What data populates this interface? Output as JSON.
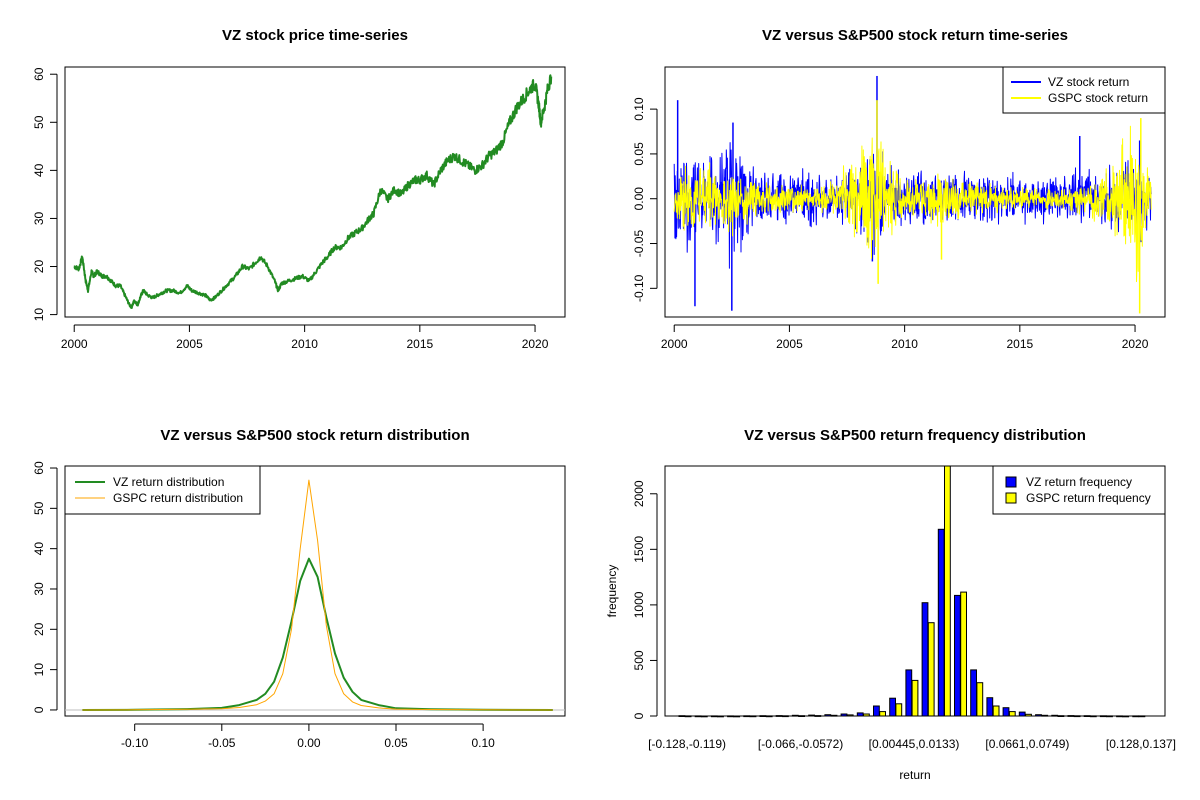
{
  "colors": {
    "vz_price": "#228B22",
    "vz_return": "#0000FF",
    "gspc_return": "#FFFF00",
    "vz_density": "#228B22",
    "gspc_density": "#FFA500",
    "baseline": "#BEBEBE"
  },
  "chart_data": [
    {
      "type": "line",
      "title": "VZ stock price time-series",
      "xlabel": "",
      "ylabel": "",
      "xlim": [
        1999.6,
        2021.3
      ],
      "ylim": [
        9.5,
        61.5
      ],
      "x_ticks": [
        2000,
        2005,
        2010,
        2015,
        2020
      ],
      "x_tick_labels": [
        "2000",
        "2005",
        "2010",
        "2015",
        "2020"
      ],
      "y_ticks": [
        10,
        20,
        30,
        40,
        50,
        60
      ],
      "y_tick_labels": [
        "10",
        "20",
        "30",
        "40",
        "50",
        "60"
      ],
      "series": [
        {
          "x": [
            2000.0,
            2000.2,
            2000.35,
            2000.5,
            2000.6,
            2000.75,
            2000.85,
            2001.0,
            2001.2,
            2001.4,
            2001.6,
            2001.8,
            2002.0,
            2002.2,
            2002.4,
            2002.5,
            2002.6,
            2002.75,
            2002.9,
            2003.0,
            2003.2,
            2003.4,
            2003.6,
            2003.8,
            2004.0,
            2004.3,
            2004.6,
            2004.9,
            2005.1,
            2005.4,
            2005.7,
            2005.9,
            2006.1,
            2006.4,
            2006.7,
            2007.0,
            2007.3,
            2007.6,
            2007.9,
            2008.1,
            2008.4,
            2008.7,
            2008.85,
            2009.0,
            2009.3,
            2009.6,
            2009.9,
            2010.2,
            2010.5,
            2010.8,
            2011.0,
            2011.3,
            2011.6,
            2011.9,
            2012.2,
            2012.5,
            2012.8,
            2013.0,
            2013.3,
            2013.6,
            2013.9,
            2014.2,
            2014.5,
            2014.8,
            2015.0,
            2015.3,
            2015.6,
            2015.9,
            2016.2,
            2016.5,
            2016.8,
            2017.1,
            2017.4,
            2017.7,
            2018.0,
            2018.3,
            2018.6,
            2018.9,
            2019.2,
            2019.5,
            2019.8,
            2020.0,
            2020.15,
            2020.25,
            2020.4,
            2020.55,
            2020.7
          ],
          "values": [
            20,
            19.5,
            22,
            17,
            15,
            19,
            18,
            19,
            18,
            18,
            17,
            16,
            16,
            14,
            12,
            11.5,
            13,
            12,
            14,
            15,
            14,
            13.5,
            14,
            14.5,
            15,
            15,
            14.5,
            16,
            15,
            14.5,
            14,
            13,
            13.5,
            15,
            16.5,
            18,
            20,
            19.5,
            21,
            22,
            20,
            17,
            15,
            16.5,
            17,
            17.5,
            18,
            17,
            19,
            21,
            22,
            24,
            24,
            26,
            27,
            28,
            30,
            31,
            36,
            34,
            36,
            35,
            37,
            38,
            38,
            39,
            37,
            40,
            42,
            43,
            42,
            41,
            40,
            41,
            43,
            44,
            46,
            50,
            53,
            55,
            57,
            58,
            54,
            50,
            53,
            57,
            59.5
          ],
          "color_key": "vz_price",
          "line_width": 2
        }
      ]
    },
    {
      "type": "line",
      "title": "VZ versus S&P500 stock return time-series",
      "xlabel": "",
      "ylabel": "",
      "xlim": [
        1999.6,
        2021.3
      ],
      "ylim": [
        -0.132,
        0.147
      ],
      "x_ticks": [
        2000,
        2005,
        2010,
        2015,
        2020
      ],
      "x_tick_labels": [
        "2000",
        "2005",
        "2010",
        "2015",
        "2020"
      ],
      "y_ticks": [
        -0.1,
        -0.05,
        0.0,
        0.05,
        0.1
      ],
      "y_tick_labels": [
        "-0.10",
        "-0.05",
        "0.00",
        "0.05",
        "0.10"
      ],
      "legend": {
        "position": "top-right",
        "entries": [
          "VZ stock return",
          "GSPC stock return"
        ]
      },
      "series": [
        {
          "name": "VZ stock return",
          "color_key": "vz_return",
          "x_range": [
            2000.0,
            2020.7
          ],
          "volatility_profile": [
            [
              2000.0,
              0.035
            ],
            [
              2001.5,
              0.025
            ],
            [
              2002.5,
              0.04
            ],
            [
              2003.5,
              0.022
            ],
            [
              2005.0,
              0.015
            ],
            [
              2007.0,
              0.015
            ],
            [
              2008.7,
              0.03
            ],
            [
              2009.5,
              0.02
            ],
            [
              2011.0,
              0.018
            ],
            [
              2013.0,
              0.015
            ],
            [
              2016.0,
              0.015
            ],
            [
              2018.0,
              0.018
            ],
            [
              2020.2,
              0.025
            ],
            [
              2020.7,
              0.016
            ]
          ],
          "spikes": [
            [
              2000.15,
              0.11
            ],
            [
              2000.9,
              -0.12
            ],
            [
              2002.5,
              -0.125
            ],
            [
              2002.55,
              0.085
            ],
            [
              2008.8,
              0.137
            ],
            [
              2008.6,
              -0.07
            ],
            [
              2020.2,
              0.065
            ],
            [
              2017.6,
              0.07
            ]
          ]
        },
        {
          "name": "GSPC stock return",
          "color_key": "gspc_return",
          "x_range": [
            2000.0,
            2020.7
          ],
          "volatility_profile": [
            [
              2000.0,
              0.018
            ],
            [
              2002.5,
              0.022
            ],
            [
              2003.5,
              0.012
            ],
            [
              2005.0,
              0.008
            ],
            [
              2007.0,
              0.01
            ],
            [
              2008.8,
              0.045
            ],
            [
              2009.5,
              0.02
            ],
            [
              2010.5,
              0.012
            ],
            [
              2011.6,
              0.02
            ],
            [
              2013.0,
              0.009
            ],
            [
              2017.0,
              0.006
            ],
            [
              2018.2,
              0.012
            ],
            [
              2020.2,
              0.05
            ],
            [
              2020.6,
              0.018
            ]
          ],
          "spikes": [
            [
              2008.8,
              0.11
            ],
            [
              2008.85,
              -0.095
            ],
            [
              2020.2,
              -0.128
            ],
            [
              2020.25,
              0.09
            ],
            [
              2011.6,
              -0.068
            ]
          ]
        }
      ]
    },
    {
      "type": "line",
      "title": "VZ versus S&P500 stock return distribution",
      "xlabel": "",
      "ylabel": "",
      "xlim": [
        -0.14,
        0.147
      ],
      "ylim": [
        -1.5,
        60.5
      ],
      "x_ticks": [
        -0.1,
        -0.05,
        0.0,
        0.05,
        0.1
      ],
      "x_tick_labels": [
        "-0.10",
        "-0.05",
        "0.00",
        "0.05",
        "0.10"
      ],
      "y_ticks": [
        0,
        10,
        20,
        30,
        40,
        50,
        60
      ],
      "y_tick_labels": [
        "0",
        "10",
        "20",
        "30",
        "40",
        "50",
        "60"
      ],
      "legend": {
        "position": "top-left",
        "entries": [
          "VZ return distribution",
          "GSPC return distribution"
        ]
      },
      "series": [
        {
          "name": "VZ return distribution",
          "color_key": "vz_density",
          "line_width": 2,
          "x": [
            -0.13,
            -0.1,
            -0.07,
            -0.05,
            -0.04,
            -0.03,
            -0.025,
            -0.02,
            -0.015,
            -0.01,
            -0.005,
            0.0,
            0.005,
            0.01,
            0.015,
            0.02,
            0.025,
            0.03,
            0.04,
            0.05,
            0.07,
            0.1,
            0.14
          ],
          "values": [
            0,
            0.05,
            0.2,
            0.5,
            1.2,
            2.5,
            4,
            7,
            13,
            22,
            32,
            37.5,
            33,
            23,
            14,
            8,
            4.5,
            2.5,
            1.2,
            0.4,
            0.15,
            0.05,
            0
          ]
        },
        {
          "name": "GSPC return distribution",
          "color_key": "gspc_density",
          "line_width": 1,
          "x": [
            -0.13,
            -0.1,
            -0.07,
            -0.05,
            -0.04,
            -0.03,
            -0.025,
            -0.02,
            -0.015,
            -0.01,
            -0.005,
            0.0,
            0.005,
            0.01,
            0.015,
            0.02,
            0.025,
            0.03,
            0.04,
            0.05,
            0.07,
            0.1,
            0.14
          ],
          "values": [
            0,
            0.05,
            0.15,
            0.3,
            0.6,
            1.3,
            2.2,
            4,
            9,
            20,
            40,
            57,
            42,
            21,
            9,
            4,
            2,
            1.1,
            0.5,
            0.2,
            0.1,
            0.05,
            0
          ]
        }
      ]
    },
    {
      "type": "bar",
      "title": "VZ versus S&P500 return frequency distribution",
      "xlabel": "return",
      "ylabel": "frequency",
      "ylim": [
        0,
        2250
      ],
      "y_ticks": [
        0,
        500,
        1000,
        1500,
        2000
      ],
      "y_tick_labels": [
        "0",
        "500",
        "1000",
        "1500",
        "2000"
      ],
      "category_tick_labels": [
        {
          "index": 0,
          "label": "[-0.128,-0.119)"
        },
        {
          "index": 7,
          "label": "[-0.066,-0.0572)"
        },
        {
          "index": 14,
          "label": "[0.00445,0.0133)"
        },
        {
          "index": 21,
          "label": "[0.0661,0.0749)"
        },
        {
          "index": 28,
          "label": "[0.128,0.137]"
        }
      ],
      "legend": {
        "position": "top-right",
        "entries": [
          "VZ return frequency",
          "GSPC return frequency"
        ]
      },
      "series": [
        {
          "name": "VZ return frequency",
          "color_key": "vz_return",
          "values": [
            3,
            1,
            1,
            1,
            2,
            3,
            4,
            6,
            8,
            12,
            18,
            28,
            90,
            160,
            415,
            1020,
            1680,
            1085,
            415,
            165,
            75,
            35,
            12,
            6,
            4,
            3,
            2,
            1,
            1
          ]
        },
        {
          "name": "GSPC return frequency",
          "color_key": "gspc_return",
          "values": [
            1,
            0,
            0,
            0,
            1,
            1,
            2,
            3,
            4,
            6,
            10,
            18,
            40,
            110,
            320,
            840,
            2250,
            1115,
            300,
            90,
            40,
            15,
            6,
            3,
            2,
            1,
            1,
            0,
            1
          ]
        }
      ]
    }
  ]
}
